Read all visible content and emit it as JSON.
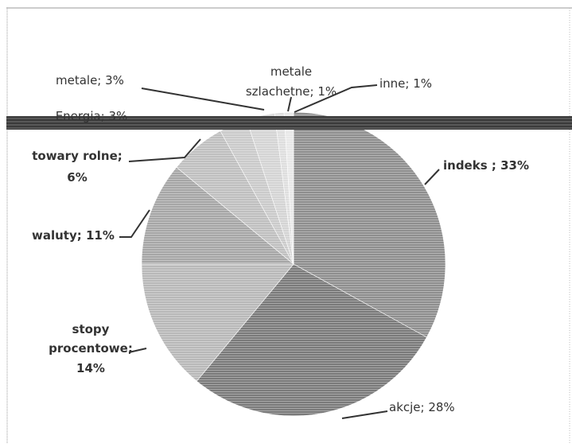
{
  "chart_data": {
    "type": "pie",
    "title": "",
    "legend": "none",
    "slices": [
      {
        "label": "indeks",
        "display": "indeks ; 33%",
        "value": 33,
        "color": "#8e8e8e"
      },
      {
        "label": "akcje",
        "display": "akcje; 28%",
        "value": 28,
        "color": "#7a7a7a"
      },
      {
        "label": "stopy procentowe",
        "display": "stopy procentowe; 14%",
        "value": 14,
        "color": "#b8b8b8"
      },
      {
        "label": "waluty",
        "display": "waluty; 11%",
        "value": 11,
        "color": "#a6a6a6"
      },
      {
        "label": "towary rolne",
        "display": "towary rolne; 6%",
        "value": 6,
        "color": "#bfbfbf"
      },
      {
        "label": "Energia",
        "display": "Energia; 3%",
        "value": 3,
        "color": "#cacaca"
      },
      {
        "label": "metale",
        "display": "metale; 3%",
        "value": 3,
        "color": "#d4d4d4"
      },
      {
        "label": "metale szlachetne",
        "display": "metale szlachetne; 1%",
        "value": 1,
        "color": "#dedede"
      },
      {
        "label": "inne",
        "display": "inne; 1%",
        "value": 1,
        "color": "#e8e8e8"
      }
    ]
  }
}
